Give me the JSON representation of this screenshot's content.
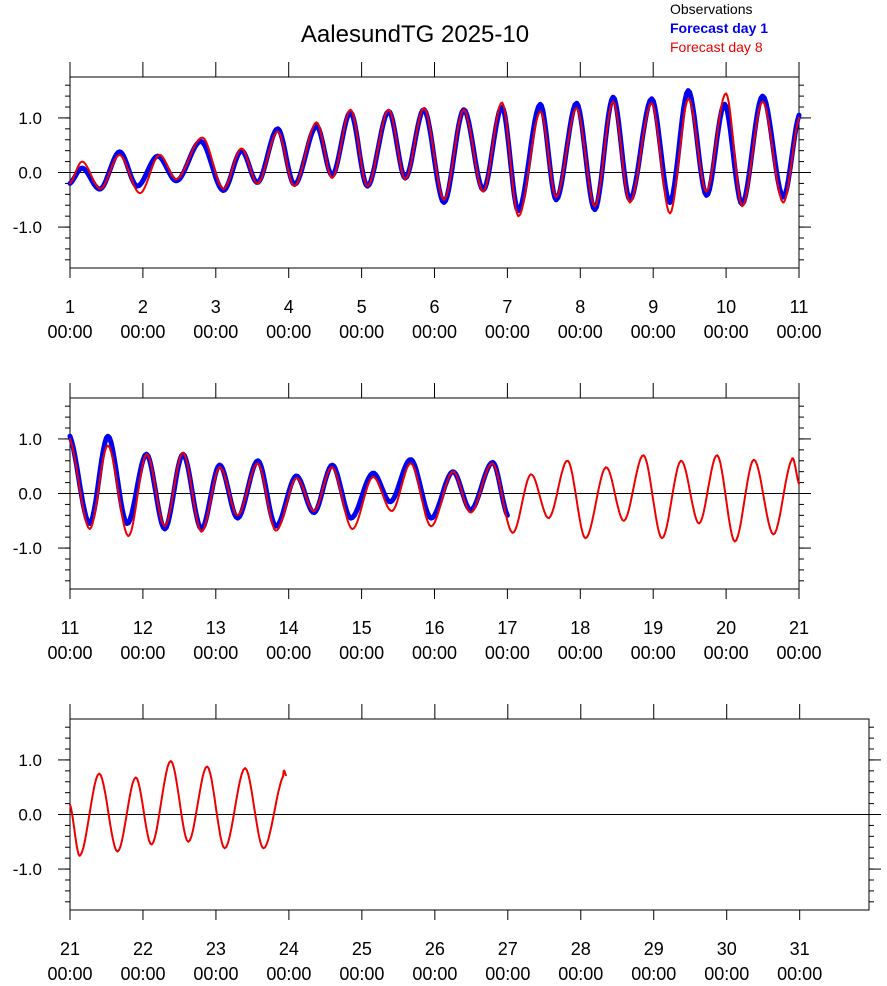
{
  "title": "AalesundTG 2025-10",
  "legend": [
    {
      "label": "Observations",
      "color": "#000000",
      "bold": false
    },
    {
      "label": "Forecast day 1",
      "color": "#0000ee",
      "bold": true
    },
    {
      "label": "Forecast day 8",
      "color": "#ee0000",
      "bold": false
    }
  ],
  "colors": {
    "observations": "#000000",
    "forecast_day1": "#0000ee",
    "forecast_day8": "#ee0000"
  },
  "chart_data": [
    {
      "type": "line",
      "xlim": [
        1,
        11
      ],
      "ylim": [
        -1.75,
        1.75
      ],
      "yticks": [
        -1.0,
        0.0,
        1.0
      ],
      "ytick_labels": [
        "-1.0",
        "0.0",
        "1.0"
      ],
      "xticks": [
        1,
        2,
        3,
        4,
        5,
        6,
        7,
        8,
        9,
        10,
        11
      ],
      "xtick_labels": [
        "1",
        "2",
        "3",
        "4",
        "5",
        "6",
        "7",
        "8",
        "9",
        "10",
        "11"
      ],
      "xtick_time_label": "00:00",
      "series": [
        {
          "name": "Forecast day 1",
          "color": "#0000ee",
          "x_end": 11.0,
          "points": [
            [
              1.0,
              -0.2
            ],
            [
              1.17,
              0.08
            ],
            [
              1.42,
              -0.3
            ],
            [
              1.68,
              0.38
            ],
            [
              1.92,
              -0.25
            ],
            [
              2.2,
              0.3
            ],
            [
              2.47,
              -0.15
            ],
            [
              2.8,
              0.57
            ],
            [
              3.1,
              -0.33
            ],
            [
              3.35,
              0.4
            ],
            [
              3.58,
              -0.18
            ],
            [
              3.85,
              0.8
            ],
            [
              4.08,
              -0.22
            ],
            [
              4.38,
              0.85
            ],
            [
              4.6,
              -0.05
            ],
            [
              4.85,
              1.1
            ],
            [
              5.08,
              -0.25
            ],
            [
              5.37,
              1.12
            ],
            [
              5.6,
              -0.1
            ],
            [
              5.86,
              1.15
            ],
            [
              6.13,
              -0.55
            ],
            [
              6.4,
              1.15
            ],
            [
              6.67,
              -0.32
            ],
            [
              6.93,
              1.2
            ],
            [
              7.15,
              -0.7
            ],
            [
              7.45,
              1.25
            ],
            [
              7.67,
              -0.5
            ],
            [
              7.95,
              1.27
            ],
            [
              8.2,
              -0.68
            ],
            [
              8.45,
              1.38
            ],
            [
              8.68,
              -0.5
            ],
            [
              8.98,
              1.35
            ],
            [
              9.23,
              -0.55
            ],
            [
              9.48,
              1.5
            ],
            [
              9.73,
              -0.42
            ],
            [
              9.98,
              1.25
            ],
            [
              10.22,
              -0.58
            ],
            [
              10.5,
              1.4
            ],
            [
              10.78,
              -0.45
            ],
            [
              11.0,
              1.05
            ]
          ]
        },
        {
          "name": "Forecast day 8",
          "color": "#ee0000",
          "x_end": 11.0,
          "points": [
            [
              1.0,
              -0.2
            ],
            [
              1.17,
              0.2
            ],
            [
              1.42,
              -0.3
            ],
            [
              1.68,
              0.32
            ],
            [
              1.96,
              -0.38
            ],
            [
              2.22,
              0.32
            ],
            [
              2.47,
              -0.12
            ],
            [
              2.82,
              0.64
            ],
            [
              3.1,
              -0.3
            ],
            [
              3.35,
              0.44
            ],
            [
              3.58,
              -0.2
            ],
            [
              3.85,
              0.75
            ],
            [
              4.08,
              -0.25
            ],
            [
              4.38,
              0.92
            ],
            [
              4.6,
              -0.1
            ],
            [
              4.85,
              1.15
            ],
            [
              5.08,
              -0.25
            ],
            [
              5.37,
              1.15
            ],
            [
              5.6,
              -0.12
            ],
            [
              5.86,
              1.18
            ],
            [
              6.13,
              -0.5
            ],
            [
              6.4,
              1.15
            ],
            [
              6.67,
              -0.35
            ],
            [
              6.93,
              1.28
            ],
            [
              7.15,
              -0.8
            ],
            [
              7.45,
              1.12
            ],
            [
              7.67,
              -0.45
            ],
            [
              7.95,
              1.18
            ],
            [
              8.2,
              -0.62
            ],
            [
              8.45,
              1.3
            ],
            [
              8.68,
              -0.55
            ],
            [
              8.98,
              1.27
            ],
            [
              9.23,
              -0.75
            ],
            [
              9.48,
              1.35
            ],
            [
              9.73,
              -0.35
            ],
            [
              10.0,
              1.45
            ],
            [
              10.22,
              -0.62
            ],
            [
              10.5,
              1.3
            ],
            [
              10.78,
              -0.55
            ],
            [
              11.0,
              1.0
            ]
          ]
        }
      ]
    },
    {
      "type": "line",
      "xlim": [
        11,
        21
      ],
      "ylim": [
        -1.75,
        1.75
      ],
      "yticks": [
        -1.0,
        0.0,
        1.0
      ],
      "ytick_labels": [
        "-1.0",
        "0.0",
        "1.0"
      ],
      "xticks": [
        11,
        12,
        13,
        14,
        15,
        16,
        17,
        18,
        19,
        20,
        21
      ],
      "xtick_labels": [
        "11",
        "12",
        "13",
        "14",
        "15",
        "16",
        "17",
        "18",
        "19",
        "20",
        "21"
      ],
      "xtick_time_label": "00:00",
      "series": [
        {
          "name": "Forecast day 1",
          "color": "#0000ee",
          "x_end": 17.0,
          "points": [
            [
              11.0,
              1.05
            ],
            [
              11.27,
              -0.55
            ],
            [
              11.52,
              1.05
            ],
            [
              11.78,
              -0.55
            ],
            [
              12.05,
              0.72
            ],
            [
              12.3,
              -0.65
            ],
            [
              12.55,
              0.72
            ],
            [
              12.8,
              -0.65
            ],
            [
              13.05,
              0.52
            ],
            [
              13.3,
              -0.45
            ],
            [
              13.58,
              0.6
            ],
            [
              13.82,
              -0.6
            ],
            [
              14.1,
              0.32
            ],
            [
              14.35,
              -0.35
            ],
            [
              14.6,
              0.52
            ],
            [
              14.85,
              -0.45
            ],
            [
              15.15,
              0.37
            ],
            [
              15.4,
              -0.15
            ],
            [
              15.68,
              0.62
            ],
            [
              15.95,
              -0.45
            ],
            [
              16.25,
              0.4
            ],
            [
              16.5,
              -0.3
            ],
            [
              16.8,
              0.57
            ],
            [
              17.0,
              -0.4
            ]
          ]
        },
        {
          "name": "Forecast day 8",
          "color": "#ee0000",
          "x_end": 21.0,
          "points": [
            [
              11.0,
              1.0
            ],
            [
              11.27,
              -0.65
            ],
            [
              11.52,
              0.88
            ],
            [
              11.8,
              -0.78
            ],
            [
              12.05,
              0.72
            ],
            [
              12.3,
              -0.6
            ],
            [
              12.55,
              0.75
            ],
            [
              12.8,
              -0.7
            ],
            [
              13.05,
              0.48
            ],
            [
              13.3,
              -0.4
            ],
            [
              13.58,
              0.55
            ],
            [
              13.82,
              -0.68
            ],
            [
              14.1,
              0.28
            ],
            [
              14.35,
              -0.32
            ],
            [
              14.6,
              0.48
            ],
            [
              14.87,
              -0.65
            ],
            [
              15.15,
              0.3
            ],
            [
              15.42,
              -0.32
            ],
            [
              15.68,
              0.55
            ],
            [
              15.95,
              -0.6
            ],
            [
              16.25,
              0.4
            ],
            [
              16.5,
              -0.35
            ],
            [
              16.8,
              0.55
            ],
            [
              17.07,
              -0.72
            ],
            [
              17.32,
              0.35
            ],
            [
              17.57,
              -0.45
            ],
            [
              17.83,
              0.6
            ],
            [
              18.07,
              -0.82
            ],
            [
              18.35,
              0.48
            ],
            [
              18.6,
              -0.5
            ],
            [
              18.87,
              0.7
            ],
            [
              19.12,
              -0.82
            ],
            [
              19.38,
              0.6
            ],
            [
              19.63,
              -0.55
            ],
            [
              19.88,
              0.7
            ],
            [
              20.12,
              -0.88
            ],
            [
              20.38,
              0.62
            ],
            [
              20.65,
              -0.75
            ],
            [
              20.9,
              0.62
            ],
            [
              21.0,
              0.18
            ]
          ]
        }
      ]
    },
    {
      "type": "line",
      "xlim": [
        21,
        31.95
      ],
      "ylim": [
        -1.75,
        1.75
      ],
      "yticks": [
        -1.0,
        0.0,
        1.0
      ],
      "ytick_labels": [
        "-1.0",
        "0.0",
        "1.0"
      ],
      "xticks": [
        21,
        22,
        23,
        24,
        25,
        26,
        27,
        28,
        29,
        30,
        31
      ],
      "xtick_labels": [
        "21",
        "22",
        "23",
        "24",
        "25",
        "26",
        "27",
        "28",
        "29",
        "30",
        "31"
      ],
      "xtick_time_label": "00:00",
      "series": [
        {
          "name": "Forecast day 8",
          "color": "#ee0000",
          "x_end": 23.96,
          "points": [
            [
              21.0,
              0.18
            ],
            [
              21.14,
              -0.75
            ],
            [
              21.4,
              0.75
            ],
            [
              21.65,
              -0.68
            ],
            [
              21.9,
              0.68
            ],
            [
              22.12,
              -0.55
            ],
            [
              22.38,
              0.98
            ],
            [
              22.62,
              -0.5
            ],
            [
              22.88,
              0.88
            ],
            [
              23.12,
              -0.62
            ],
            [
              23.4,
              0.85
            ],
            [
              23.65,
              -0.62
            ],
            [
              23.92,
              0.7
            ],
            [
              23.96,
              0.72
            ]
          ]
        }
      ]
    }
  ]
}
